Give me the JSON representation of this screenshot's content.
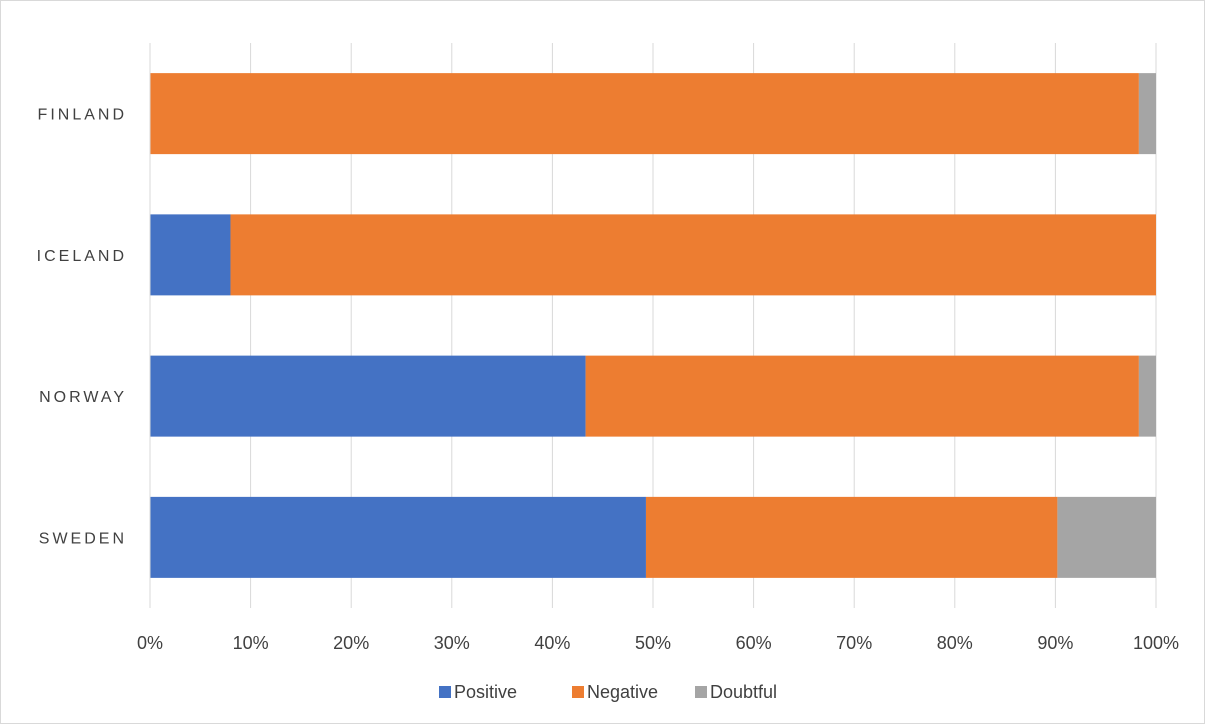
{
  "chart_data": {
    "type": "bar",
    "orientation": "horizontal",
    "stacking": "percent",
    "categories": [
      "FINLAND",
      "ICELAND",
      "NORWAY",
      "SWEDEN"
    ],
    "series": [
      {
        "name": "Positive",
        "color": "#4472C4",
        "values": [
          0,
          8,
          43.3,
          49.3
        ]
      },
      {
        "name": "Negative",
        "color": "#ED7D31",
        "values": [
          98.3,
          92,
          55,
          40.9
        ]
      },
      {
        "name": "Doubtful",
        "color": "#A5A5A5",
        "values": [
          1.7,
          0,
          1.7,
          9.8
        ]
      }
    ],
    "xlim": [
      0,
      100
    ],
    "x_ticks": [
      "0%",
      "10%",
      "20%",
      "30%",
      "40%",
      "50%",
      "60%",
      "70%",
      "80%",
      "90%",
      "100%"
    ],
    "grid": "vertical",
    "legend_position": "bottom",
    "title": "",
    "xlabel": "",
    "ylabel": ""
  }
}
